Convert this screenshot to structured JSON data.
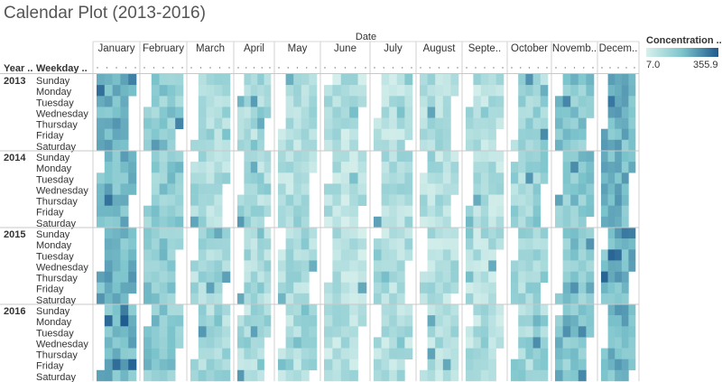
{
  "title": "Calendar Plot (2013-2016)",
  "chart_data": {
    "type": "heatmap",
    "column_header": "Date",
    "row_headers": [
      "Year ..",
      "Weekday .."
    ],
    "months": [
      "January",
      "February",
      "March",
      "April",
      "May",
      "June",
      "July",
      "August",
      "Septe..",
      "October",
      "Novemb..",
      "Decem.."
    ],
    "years": [
      "2013",
      "2014",
      "2015",
      "2016"
    ],
    "weekdays": [
      "Sunday",
      "Monday",
      "Tuesday",
      "Wednesday",
      "Thursday",
      "Friday",
      "Saturday"
    ],
    "legend": {
      "title": "Concentration ..",
      "min": 7.0,
      "max": 355.9,
      "min_label": "7.0",
      "max_label": "355.9",
      "color_low": "#d7f0ec",
      "color_high": "#1f5a8e"
    },
    "month_intensity": [
      0.55,
      0.4,
      0.25,
      0.24,
      0.22,
      0.18,
      0.2,
      0.2,
      0.2,
      0.3,
      0.42,
      0.55
    ]
  }
}
